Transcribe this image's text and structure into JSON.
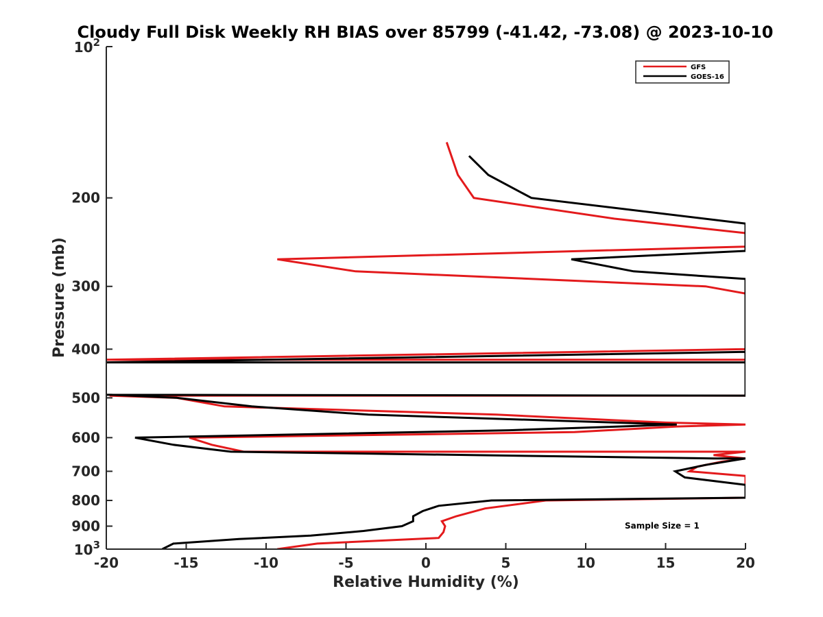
{
  "chart_data": {
    "type": "line",
    "title": "Cloudy Full Disk Weekly RH BIAS over 85799 (-41.42, -73.08) @ 2023-10-10",
    "xlabel": "Relative Humidity (%)",
    "ylabel": "Pressure (mb)",
    "xlim": [
      -20,
      20
    ],
    "ylim": [
      100,
      1000
    ],
    "yscale": "log",
    "y_reversed": true,
    "x_ticks": [
      "-20",
      "-15",
      "-10",
      "-5",
      "0",
      "5",
      "10",
      "15",
      "20"
    ],
    "y_ticks": [
      "200",
      "300",
      "400",
      "500",
      "600",
      "700",
      "800",
      "900"
    ],
    "y_tick_base": "10",
    "y_tick_exp_top": "2",
    "y_tick_exp_bottom": "3",
    "grid": false,
    "legend_position": "top-right",
    "annotation": "Sample Size = 1",
    "series": [
      {
        "name": "GFS",
        "color": "#e31a1c",
        "x": [
          -9.3,
          -6.8,
          0.8,
          1.1,
          1.2,
          1.0,
          1.9,
          3.7,
          7.5,
          20.0,
          20.0,
          16.5,
          17.0,
          18.5,
          20.0,
          20.0,
          18.0,
          20.0,
          -11.4,
          -13.4,
          -14.8,
          9.3,
          15.7,
          20.0,
          15.0,
          4.4,
          -12.6,
          -15.6,
          -19.8,
          20.0,
          20.0,
          -20.0,
          20.0,
          20.0,
          17.5,
          -4.4,
          -9.3,
          20.0,
          20.0,
          11.8,
          3.0,
          2.0,
          1.3
        ],
        "y": [
          1000,
          975,
          950,
          925,
          900,
          880,
          860,
          830,
          800,
          790,
          715,
          700,
          685,
          670,
          660,
          660,
          650,
          640,
          640,
          620,
          600,
          585,
          570,
          565,
          560,
          540,
          520,
          500,
          495,
          495,
          400,
          420,
          420,
          310,
          300,
          280,
          265,
          250,
          235,
          220,
          200,
          180,
          155
        ]
      },
      {
        "name": "GOES-16",
        "color": "#000000",
        "x": [
          -16.5,
          -15.8,
          -11.7,
          -7.2,
          -3.9,
          -1.5,
          -0.8,
          -0.8,
          -0.2,
          0.8,
          4.1,
          20.0,
          20.0,
          16.2,
          15.6,
          17.5,
          20.0,
          20.0,
          18.0,
          -12.2,
          -15.8,
          -18.2,
          5.2,
          15.7,
          -3.6,
          -10.9,
          -15.6,
          -19.7,
          -20.0,
          20.0,
          20.0,
          -20.0,
          20.0,
          20.0,
          13.0,
          9.1,
          20.0,
          20.0,
          6.6,
          3.9,
          2.7
        ],
        "y": [
          1000,
          975,
          955,
          940,
          920,
          900,
          880,
          860,
          840,
          820,
          800,
          790,
          745,
          720,
          700,
          680,
          660,
          660,
          660,
          640,
          620,
          600,
          580,
          565,
          540,
          520,
          500,
          493,
          493,
          495,
          405,
          425,
          425,
          290,
          280,
          265,
          255,
          225,
          200,
          180,
          165
        ]
      }
    ]
  }
}
